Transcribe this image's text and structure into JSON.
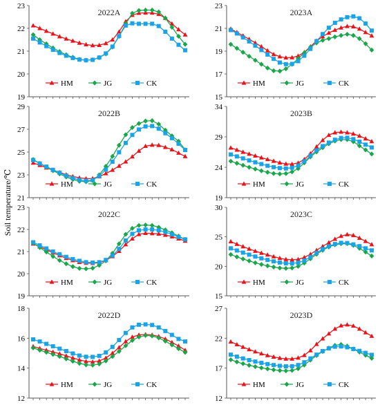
{
  "figure": {
    "ylabel": "Soil temperature/℃",
    "colors": {
      "HM": "#e8141a",
      "JG": "#1aa64a",
      "CK": "#1aa3e6"
    },
    "markers": {
      "HM": "triangle",
      "JG": "diamond",
      "CK": "square"
    }
  },
  "chart_data": [
    {
      "type": "line",
      "title": "2022A",
      "ylim": [
        19,
        23
      ],
      "yticks": [
        19,
        20,
        21,
        22,
        23
      ],
      "grid": false,
      "legend": "bottom-center",
      "x": [
        0,
        1,
        2,
        3,
        4,
        5,
        6,
        7,
        8,
        9,
        10,
        11,
        12,
        13,
        14,
        15,
        16,
        17,
        18,
        19,
        20,
        21,
        22,
        23
      ],
      "series": [
        {
          "name": "HM",
          "values": [
            22.12,
            22.0,
            21.88,
            21.76,
            21.64,
            21.54,
            21.45,
            21.36,
            21.29,
            21.25,
            21.26,
            21.34,
            21.5,
            21.85,
            22.3,
            22.58,
            22.67,
            22.68,
            22.68,
            22.62,
            22.45,
            22.2,
            21.95,
            21.72
          ]
        },
        {
          "name": "JG",
          "values": [
            21.72,
            21.5,
            21.32,
            21.14,
            20.98,
            20.84,
            20.73,
            20.64,
            20.6,
            20.62,
            20.72,
            20.88,
            21.18,
            21.65,
            22.2,
            22.66,
            22.78,
            22.8,
            22.8,
            22.72,
            22.45,
            22.05,
            21.65,
            21.3
          ]
        },
        {
          "name": "CK",
          "values": [
            21.55,
            21.38,
            21.22,
            21.06,
            20.92,
            20.8,
            20.7,
            20.63,
            20.6,
            20.62,
            20.72,
            20.9,
            21.2,
            21.66,
            22.12,
            22.22,
            22.2,
            22.2,
            22.2,
            22.1,
            21.85,
            21.55,
            21.28,
            21.04
          ]
        }
      ]
    },
    {
      "type": "line",
      "title": "2023A",
      "ylim": [
        15,
        23
      ],
      "yticks": [
        15,
        17,
        19,
        21,
        23
      ],
      "grid": false,
      "legend": "bottom-center",
      "x": [
        0,
        1,
        2,
        3,
        4,
        5,
        6,
        7,
        8,
        9,
        10,
        11,
        12,
        13,
        14,
        15,
        16,
        17,
        18,
        19,
        20,
        21,
        22,
        23
      ],
      "series": [
        {
          "name": "HM",
          "values": [
            20.95,
            20.65,
            20.35,
            20.05,
            19.72,
            19.4,
            19.05,
            18.72,
            18.52,
            18.42,
            18.44,
            18.58,
            18.9,
            19.4,
            19.9,
            20.28,
            20.6,
            20.85,
            21.05,
            21.18,
            21.15,
            20.95,
            20.65,
            20.35
          ]
        },
        {
          "name": "JG",
          "values": [
            19.6,
            19.25,
            18.9,
            18.55,
            18.2,
            17.85,
            17.52,
            17.28,
            17.25,
            17.45,
            17.85,
            18.35,
            18.85,
            19.35,
            19.72,
            19.95,
            20.1,
            20.25,
            20.38,
            20.48,
            20.38,
            20.1,
            19.65,
            19.1
          ]
        },
        {
          "name": "CK",
          "values": [
            20.85,
            20.55,
            20.2,
            19.85,
            19.48,
            19.1,
            18.7,
            18.32,
            18.0,
            17.86,
            17.88,
            18.12,
            18.6,
            19.2,
            19.88,
            20.5,
            21.05,
            21.48,
            21.78,
            21.98,
            22.05,
            21.88,
            21.42,
            20.8
          ]
        }
      ]
    },
    {
      "type": "line",
      "title": "2022B",
      "ylim": [
        21,
        29
      ],
      "yticks": [
        21,
        23,
        25,
        27,
        29
      ],
      "grid": false,
      "legend": "bottom-center",
      "x": [
        0,
        1,
        2,
        3,
        4,
        5,
        6,
        7,
        8,
        9,
        10,
        11,
        12,
        13,
        14,
        15,
        16,
        17,
        18,
        19,
        20,
        21,
        22,
        23
      ],
      "series": [
        {
          "name": "HM",
          "values": [
            24.05,
            23.85,
            23.62,
            23.42,
            23.22,
            23.02,
            22.86,
            22.74,
            22.67,
            22.68,
            22.85,
            23.12,
            23.42,
            23.78,
            24.15,
            24.6,
            25.1,
            25.52,
            25.62,
            25.6,
            25.42,
            25.22,
            24.92,
            24.62
          ]
        },
        {
          "name": "JG",
          "values": [
            24.35,
            24.0,
            23.68,
            23.36,
            23.08,
            22.82,
            22.6,
            22.44,
            22.4,
            22.5,
            23.0,
            23.75,
            24.62,
            25.6,
            26.52,
            27.15,
            27.5,
            27.72,
            27.75,
            27.45,
            26.92,
            26.42,
            25.95,
            25.2
          ]
        },
        {
          "name": "CK",
          "values": [
            24.3,
            24.0,
            23.72,
            23.44,
            23.18,
            22.93,
            22.72,
            22.56,
            22.48,
            22.54,
            22.9,
            23.45,
            24.15,
            24.98,
            25.8,
            26.5,
            26.98,
            27.25,
            27.28,
            27.05,
            26.65,
            26.22,
            25.72,
            25.18
          ]
        }
      ]
    },
    {
      "type": "line",
      "title": "2023B",
      "ylim": [
        19,
        34
      ],
      "yticks": [
        19,
        24,
        29,
        34
      ],
      "grid": false,
      "legend": "bottom-center",
      "x": [
        0,
        1,
        2,
        3,
        4,
        5,
        6,
        7,
        8,
        9,
        10,
        11,
        12,
        13,
        14,
        15,
        16,
        17,
        18,
        19,
        20,
        21,
        22,
        23
      ],
      "series": [
        {
          "name": "HM",
          "values": [
            27.2,
            26.85,
            26.5,
            26.18,
            25.88,
            25.58,
            25.3,
            25.02,
            24.75,
            24.55,
            24.52,
            24.72,
            25.3,
            26.25,
            27.38,
            28.45,
            29.28,
            29.7,
            29.8,
            29.7,
            29.5,
            29.15,
            28.7,
            28.25
          ]
        },
        {
          "name": "JG",
          "values": [
            25.0,
            24.65,
            24.32,
            24.0,
            23.7,
            23.42,
            23.18,
            22.98,
            22.9,
            22.96,
            23.25,
            23.78,
            24.72,
            25.7,
            26.52,
            27.22,
            27.85,
            28.32,
            28.55,
            28.55,
            28.2,
            27.52,
            26.85,
            26.18
          ]
        },
        {
          "name": "CK",
          "values": [
            26.1,
            25.78,
            25.45,
            25.12,
            24.82,
            24.52,
            24.25,
            24.02,
            23.86,
            23.8,
            23.92,
            24.28,
            24.98,
            25.9,
            26.78,
            27.48,
            28.05,
            28.52,
            28.82,
            28.85,
            28.62,
            28.2,
            27.72,
            27.25
          ]
        }
      ]
    },
    {
      "type": "line",
      "title": "2022C",
      "ylim": [
        19,
        23
      ],
      "yticks": [
        19,
        20,
        21,
        22,
        23
      ],
      "grid": false,
      "legend": "bottom-center",
      "x": [
        0,
        1,
        2,
        3,
        4,
        5,
        6,
        7,
        8,
        9,
        10,
        11,
        12,
        13,
        14,
        15,
        16,
        17,
        18,
        19,
        20,
        21,
        22,
        23
      ],
      "series": [
        {
          "name": "HM",
          "values": [
            21.35,
            21.22,
            21.08,
            20.95,
            20.82,
            20.7,
            20.6,
            20.52,
            20.48,
            20.47,
            20.5,
            20.6,
            20.78,
            21.02,
            21.32,
            21.58,
            21.78,
            21.83,
            21.82,
            21.8,
            21.75,
            21.68,
            21.58,
            21.48
          ]
        },
        {
          "name": "JG",
          "values": [
            21.38,
            21.18,
            20.98,
            20.78,
            20.6,
            20.45,
            20.32,
            20.24,
            20.22,
            20.25,
            20.38,
            20.58,
            20.92,
            21.35,
            21.78,
            22.05,
            22.18,
            22.2,
            22.18,
            22.1,
            21.98,
            21.85,
            21.7,
            21.55
          ]
        },
        {
          "name": "CK",
          "values": [
            21.42,
            21.28,
            21.14,
            21.0,
            20.88,
            20.76,
            20.66,
            20.58,
            20.52,
            20.5,
            20.52,
            20.62,
            20.82,
            21.12,
            21.5,
            21.8,
            21.96,
            22.0,
            22.0,
            21.96,
            21.88,
            21.78,
            21.66,
            21.55
          ]
        }
      ]
    },
    {
      "type": "line",
      "title": "2023C",
      "ylim": [
        15,
        30
      ],
      "yticks": [
        15,
        20,
        25,
        30
      ],
      "grid": false,
      "legend": "bottom-center",
      "x": [
        0,
        1,
        2,
        3,
        4,
        5,
        6,
        7,
        8,
        9,
        10,
        11,
        12,
        13,
        14,
        15,
        16,
        17,
        18,
        19,
        20,
        21,
        22,
        23
      ],
      "series": [
        {
          "name": "HM",
          "values": [
            24.2,
            23.75,
            23.35,
            22.95,
            22.58,
            22.25,
            21.95,
            21.65,
            21.38,
            21.18,
            21.1,
            21.18,
            21.5,
            22.05,
            22.72,
            23.38,
            24.02,
            24.62,
            25.12,
            25.4,
            25.25,
            24.8,
            24.25,
            23.7
          ]
        },
        {
          "name": "JG",
          "values": [
            22.0,
            21.6,
            21.25,
            20.92,
            20.6,
            20.32,
            20.08,
            19.88,
            19.72,
            19.65,
            19.72,
            20.0,
            20.55,
            21.28,
            22.05,
            22.72,
            23.28,
            23.65,
            23.85,
            23.85,
            23.55,
            23.05,
            22.42,
            21.75
          ]
        },
        {
          "name": "CK",
          "values": [
            23.05,
            22.68,
            22.32,
            21.98,
            21.65,
            21.35,
            21.08,
            20.84,
            20.64,
            20.5,
            20.48,
            20.62,
            20.98,
            21.58,
            22.28,
            22.92,
            23.42,
            23.78,
            23.98,
            23.95,
            23.72,
            23.42,
            23.05,
            22.7
          ]
        }
      ]
    },
    {
      "type": "line",
      "title": "2022D",
      "ylim": [
        12,
        18
      ],
      "yticks": [
        12,
        14,
        16,
        18
      ],
      "grid": false,
      "legend": "bottom-center",
      "x": [
        0,
        1,
        2,
        3,
        4,
        5,
        6,
        7,
        8,
        9,
        10,
        11,
        12,
        13,
        14,
        15,
        16,
        17,
        18,
        19,
        20,
        21,
        22,
        23
      ],
      "series": [
        {
          "name": "HM",
          "values": [
            15.45,
            15.32,
            15.2,
            15.08,
            14.96,
            14.82,
            14.68,
            14.55,
            14.45,
            14.42,
            14.48,
            14.68,
            15.0,
            15.38,
            15.78,
            16.08,
            16.22,
            16.25,
            16.22,
            16.12,
            15.95,
            15.72,
            15.48,
            15.2
          ]
        },
        {
          "name": "JG",
          "values": [
            15.35,
            15.2,
            15.06,
            14.92,
            14.78,
            14.62,
            14.46,
            14.32,
            14.22,
            14.2,
            14.28,
            14.48,
            14.78,
            15.12,
            15.5,
            15.85,
            16.08,
            16.18,
            16.15,
            16.02,
            15.8,
            15.55,
            15.3,
            15.05
          ]
        },
        {
          "name": "CK",
          "values": [
            15.92,
            15.78,
            15.62,
            15.46,
            15.3,
            15.14,
            14.98,
            14.84,
            14.76,
            14.75,
            14.82,
            15.05,
            15.42,
            15.88,
            16.35,
            16.72,
            16.9,
            16.92,
            16.88,
            16.72,
            16.48,
            16.22,
            15.95,
            15.78
          ]
        }
      ]
    },
    {
      "type": "line",
      "title": "2023D",
      "ylim": [
        12,
        27
      ],
      "yticks": [
        12,
        17,
        22,
        27
      ],
      "grid": false,
      "legend": "bottom-center",
      "x": [
        0,
        1,
        2,
        3,
        4,
        5,
        6,
        7,
        8,
        9,
        10,
        11,
        12,
        13,
        14,
        15,
        16,
        17,
        18,
        19,
        20,
        21,
        22,
        23
      ],
      "series": [
        {
          "name": "HM",
          "values": [
            21.4,
            20.95,
            20.52,
            20.12,
            19.75,
            19.42,
            19.12,
            18.88,
            18.68,
            18.55,
            18.55,
            18.72,
            19.15,
            19.95,
            21.0,
            21.92,
            22.75,
            23.55,
            24.1,
            24.25,
            24.05,
            23.55,
            22.95,
            22.35
          ]
        },
        {
          "name": "JG",
          "values": [
            18.4,
            18.05,
            17.75,
            17.48,
            17.25,
            17.05,
            16.88,
            16.72,
            16.6,
            16.55,
            16.62,
            16.92,
            17.52,
            18.35,
            19.12,
            19.78,
            20.35,
            20.8,
            20.95,
            20.68,
            20.2,
            19.68,
            19.15,
            18.65
          ]
        },
        {
          "name": "CK",
          "values": [
            19.25,
            18.92,
            18.62,
            18.35,
            18.1,
            17.88,
            17.68,
            17.52,
            17.38,
            17.3,
            17.32,
            17.52,
            17.98,
            18.62,
            19.25,
            19.85,
            20.3,
            20.58,
            20.62,
            20.48,
            20.2,
            19.88,
            19.55,
            19.22
          ]
        }
      ]
    }
  ]
}
